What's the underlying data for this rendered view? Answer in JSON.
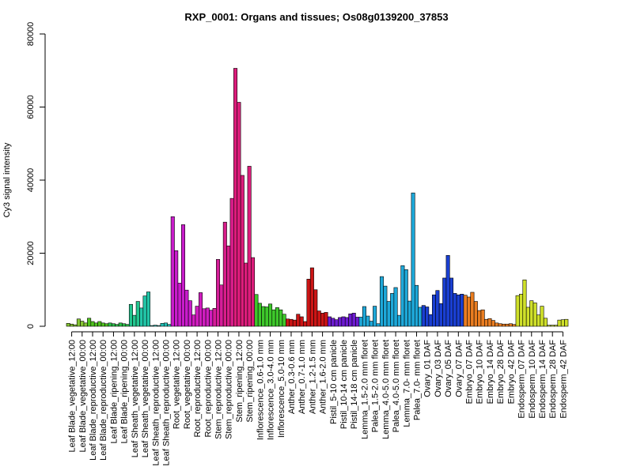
{
  "chart_data": {
    "type": "bar",
    "title": "RXP_0001: Organs and tissues; Os08g0139200_37853",
    "ylabel": "Cy3 signal intensity",
    "xlabel": "",
    "ylim": [
      0,
      80000
    ],
    "yticks": [
      0,
      20000,
      40000,
      60000,
      80000
    ],
    "grid": false,
    "groups": [
      {
        "label": "Leaf Blade_vegetative_12:00",
        "color": "#86c634",
        "values": [
          800,
          600,
          400
        ]
      },
      {
        "label": "Leaf Blade_vegetative_00:00",
        "color": "#86c634",
        "values": [
          2000,
          1400,
          900
        ]
      },
      {
        "label": "Leaf Blade_reproductive_12:00",
        "color": "#4fc41f",
        "values": [
          2200,
          1300,
          900
        ]
      },
      {
        "label": "Leaf Blade_reproductive_00:00",
        "color": "#4fc41f",
        "values": [
          1300,
          900,
          700
        ]
      },
      {
        "label": "Leaf Blade_ripening_12:00",
        "color": "#2cc24a",
        "values": [
          900,
          700,
          500
        ]
      },
      {
        "label": "Leaf Blade_ripening_00:00",
        "color": "#2cc24a",
        "values": [
          900,
          700,
          500
        ]
      },
      {
        "label": "Leaf Sheath_vegetative_12:00",
        "color": "#22c68f",
        "values": [
          6000,
          3000,
          6800
        ]
      },
      {
        "label": "Leaf Sheath_vegetative_00:00",
        "color": "#22c6a8",
        "values": [
          5000,
          8300,
          9400
        ]
      },
      {
        "label": "Leaf Sheath_reproductive_12:00",
        "color": "#21c3b8",
        "values": [
          200,
          300,
          200
        ]
      },
      {
        "label": "Leaf Sheath_reproductive_00:00",
        "color": "#21c3b8",
        "values": [
          800,
          900,
          500
        ]
      },
      {
        "label": "Root_vegetative_12:00",
        "color": "#c91ccb",
        "values": [
          30000,
          20700,
          11800
        ]
      },
      {
        "label": "Root_vegetative_00:00",
        "color": "#c91ccb",
        "values": [
          27800,
          9900,
          7000
        ]
      },
      {
        "label": "Root_reproductive_12:00",
        "color": "#d01dbf",
        "values": [
          3100,
          5500,
          9200
        ]
      },
      {
        "label": "Root_reproductive_00:00",
        "color": "#d01dbf",
        "values": [
          4800,
          5000,
          4400
        ]
      },
      {
        "label": "Stem_reproductive_12:00",
        "color": "#d61d9a",
        "values": [
          4900,
          18300,
          11300
        ]
      },
      {
        "label": "Stem_reproductive_00:00",
        "color": "#d81d8a",
        "values": [
          28500,
          22000,
          35000
        ]
      },
      {
        "label": "Stem_ripening_12:00",
        "color": "#dd1c7b",
        "values": [
          70600,
          61300,
          41300
        ]
      },
      {
        "label": "Stem_ripening_00:00",
        "color": "#dd1c7b",
        "values": [
          17300,
          43800,
          18800
        ]
      },
      {
        "label": "Inflorescence_0.6-1.0 mm",
        "color": "#3ec92b",
        "values": [
          8700,
          6300,
          5400
        ]
      },
      {
        "label": "Inflorescence_3.0-4.0 mm",
        "color": "#3ec92b",
        "values": [
          5300,
          6100,
          4500
        ]
      },
      {
        "label": "Inflorescence_5.0-10 mm",
        "color": "#3ec92b",
        "values": [
          5100,
          4500,
          3300
        ]
      },
      {
        "label": "Anther_0.3-0.6 mm",
        "color": "#cc1515",
        "values": [
          2000,
          1900,
          1700
        ]
      },
      {
        "label": "Anther_0.7-1.0 mm",
        "color": "#cc1515",
        "values": [
          3300,
          2600,
          1300
        ]
      },
      {
        "label": "Anther_1.2-1.5 mm",
        "color": "#cc1515",
        "values": [
          12900,
          16000,
          10000
        ]
      },
      {
        "label": "Anther_1.6-2.0 mm",
        "color": "#cc1515",
        "values": [
          4200,
          3600,
          3800
        ]
      },
      {
        "label": "Pistil_5-10 cm panicle",
        "color": "#6d1bd1",
        "values": [
          2600,
          2200,
          1800
        ]
      },
      {
        "label": "Pistil_10-14 cm panicle",
        "color": "#6d1bd1",
        "values": [
          2400,
          2600,
          2400
        ]
      },
      {
        "label": "Pistil_14-18 cm panicle",
        "color": "#6d1bd1",
        "values": [
          3400,
          3600,
          2500
        ]
      },
      {
        "label": "Lemma_1.5-2.0 mm floret",
        "color": "#1ea8d9",
        "values": [
          2500,
          5400,
          2800
        ]
      },
      {
        "label": "Palea_1.5-2.0 mm floret",
        "color": "#1ea8d9",
        "values": [
          1400,
          5500,
          700
        ]
      },
      {
        "label": "Lemma_4.0-5.0 mm floret",
        "color": "#1ea8d9",
        "values": [
          13600,
          11000,
          6800
        ]
      },
      {
        "label": "Palea_4.0-5.0 mm floret",
        "color": "#1ea8d9",
        "values": [
          9000,
          10600,
          3000
        ]
      },
      {
        "label": "Lemma_7.0- mm floret",
        "color": "#1ea8d9",
        "values": [
          16600,
          15500,
          6900
        ]
      },
      {
        "label": "Palea_7.0- mm floret",
        "color": "#1ea8d9",
        "values": [
          36500,
          11200,
          5200
        ]
      },
      {
        "label": "Ovary_01 DAF",
        "color": "#1a3fd2",
        "values": [
          5700,
          5300,
          3200
        ]
      },
      {
        "label": "Ovary_03 DAF",
        "color": "#1a3fd2",
        "values": [
          8600,
          9800,
          6200
        ]
      },
      {
        "label": "Ovary_05 DAF",
        "color": "#1a3fd2",
        "values": [
          13200,
          19400,
          13200
        ]
      },
      {
        "label": "Ovary_07 DAF",
        "color": "#1a3fd2",
        "values": [
          9000,
          8600,
          8800
        ]
      },
      {
        "label": "Embryo_07 DAF",
        "color": "#ea7d20",
        "values": [
          8500,
          8000,
          9300
        ]
      },
      {
        "label": "Embryo_10 DAF",
        "color": "#ea7d20",
        "values": [
          6800,
          4300,
          4500
        ]
      },
      {
        "label": "Embryo_14 DAF",
        "color": "#ea7d20",
        "values": [
          1900,
          2100,
          1600
        ]
      },
      {
        "label": "Embryo_28 DAF",
        "color": "#ea7d20",
        "values": [
          900,
          700,
          600
        ]
      },
      {
        "label": "Embryo_42 DAF",
        "color": "#ea7d20",
        "values": [
          600,
          700,
          500
        ]
      },
      {
        "label": "Endosperm_07 DAF",
        "color": "#cfe02a",
        "values": [
          8400,
          8800,
          12700
        ]
      },
      {
        "label": "Endosperm_10 DAF",
        "color": "#cfe02a",
        "values": [
          5200,
          7000,
          6400
        ]
      },
      {
        "label": "Endosperm_14 DAF",
        "color": "#cfe02a",
        "values": [
          3100,
          5500,
          2200
        ]
      },
      {
        "label": "Endosperm_28 DAF",
        "color": "#cfe02a",
        "values": [
          300,
          300,
          300
        ]
      },
      {
        "label": "Endosperm_42 DAF",
        "color": "#cfe02a",
        "values": [
          1700,
          1800,
          1900
        ]
      }
    ]
  }
}
